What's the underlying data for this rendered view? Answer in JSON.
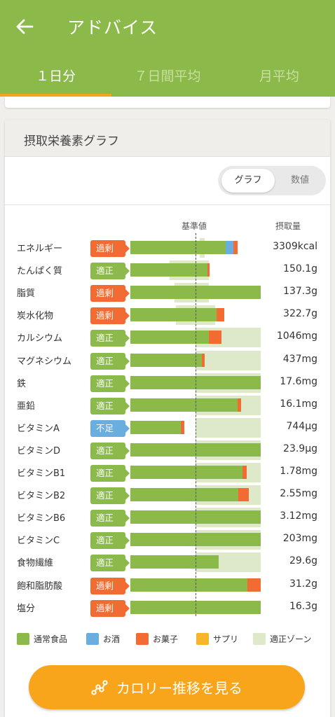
{
  "header": {
    "title": "アドバイス",
    "tabs": [
      {
        "label": "１日分",
        "active": true
      },
      {
        "label": "７日間平均",
        "active": false
      },
      {
        "label": "月平均",
        "active": false
      }
    ]
  },
  "card": {
    "title": "摂取栄養素グラフ",
    "toggle": {
      "graph_label": "グラフ",
      "value_label": "数値",
      "selected": "グラフ"
    },
    "columns": {
      "reference": "基準値",
      "intake": "摂取量"
    }
  },
  "colors": {
    "regular_food": "#8bb94a",
    "alcohol": "#6aaee0",
    "snacks": "#f26b33",
    "supplement": "#f7b52b",
    "proper_zone": "#dde9c8",
    "status_excess": "#f26b33",
    "status_proper": "#8bb94a",
    "status_short": "#6aaee0"
  },
  "chart_data": {
    "type": "bar",
    "stacked": true,
    "reference_label": "基準値",
    "intake_label": "摂取量",
    "categories": [
      "エネルギー",
      "たんぱく質",
      "脂質",
      "炭水化物",
      "カルシウム",
      "マグネシウム",
      "鉄",
      "亜鉛",
      "ビタミンA",
      "ビタミンD",
      "ビタミンB1",
      "ビタミンB2",
      "ビタミンB6",
      "ビタミンC",
      "食物繊維",
      "飽和脂肪酸",
      "塩分"
    ],
    "series_names": [
      "通常食品",
      "お酒",
      "お菓子",
      "サプリ"
    ],
    "rows": [
      {
        "name": "エネルギー",
        "status": "過剰",
        "status_type": "excess",
        "amount": "3309kcal",
        "regular": 73,
        "alcohol": 6,
        "snacks": 3,
        "supplement": 0,
        "zone": [
          53,
          57
        ]
      },
      {
        "name": "たんぱく質",
        "status": "適正",
        "status_type": "proper",
        "amount": "150.1g",
        "regular": 59,
        "alcohol": 0,
        "snacks": 1.5,
        "supplement": 0,
        "zone": [
          30,
          60
        ]
      },
      {
        "name": "脂質",
        "status": "過剰",
        "status_type": "excess",
        "amount": "137.3g",
        "regular": 100,
        "alcohol": 0,
        "snacks": 0,
        "supplement": 0,
        "zone": [
          34,
          60
        ]
      },
      {
        "name": "炭水化物",
        "status": "過剰",
        "status_type": "excess",
        "amount": "322.7g",
        "regular": 66,
        "alcohol": 0,
        "snacks": 6,
        "supplement": 0,
        "zone": [
          35,
          65
        ]
      },
      {
        "name": "カルシウム",
        "status": "適正",
        "status_type": "proper",
        "amount": "1046mg",
        "regular": 60,
        "alcohol": 0,
        "snacks": 10,
        "supplement": 0,
        "zone": [
          50,
          100
        ]
      },
      {
        "name": "マグネシウム",
        "status": "適正",
        "status_type": "proper",
        "amount": "437mg",
        "regular": 55,
        "alcohol": 0,
        "snacks": 2,
        "supplement": 0,
        "zone": [
          50,
          100
        ]
      },
      {
        "name": "鉄",
        "status": "適正",
        "status_type": "proper",
        "amount": "17.6mg",
        "regular": 100,
        "alcohol": 0,
        "snacks": 0,
        "supplement": 0,
        "zone": [
          50,
          100
        ]
      },
      {
        "name": "亜鉛",
        "status": "適正",
        "status_type": "proper",
        "amount": "16.1mg",
        "regular": 82,
        "alcohol": 0,
        "snacks": 3,
        "supplement": 0,
        "zone": [
          50,
          100
        ]
      },
      {
        "name": "ビタミンA",
        "status": "不足",
        "status_type": "short",
        "amount": "744μg",
        "regular": 38.5,
        "alcohol": 0,
        "snacks": 3,
        "supplement": 0,
        "zone": [
          50,
          100
        ]
      },
      {
        "name": "ビタミンD",
        "status": "適正",
        "status_type": "proper",
        "amount": "23.9μg",
        "regular": 100,
        "alcohol": 0,
        "snacks": 0,
        "supplement": 0,
        "zone": [
          50,
          100
        ]
      },
      {
        "name": "ビタミンB1",
        "status": "適正",
        "status_type": "proper",
        "amount": "1.78mg",
        "regular": 86,
        "alcohol": 0,
        "snacks": 3,
        "supplement": 0,
        "zone": [
          50,
          100
        ]
      },
      {
        "name": "ビタミンB2",
        "status": "適正",
        "status_type": "proper",
        "amount": "2.55mg",
        "regular": 83,
        "alcohol": 0,
        "snacks": 8,
        "supplement": 0,
        "zone": [
          50,
          100
        ]
      },
      {
        "name": "ビタミンB6",
        "status": "適正",
        "status_type": "proper",
        "amount": "3.12mg",
        "regular": 100,
        "alcohol": 0,
        "snacks": 0,
        "supplement": 0,
        "zone": [
          50,
          100
        ]
      },
      {
        "name": "ビタミンC",
        "status": "適正",
        "status_type": "proper",
        "amount": "203mg",
        "regular": 100,
        "alcohol": 0,
        "snacks": 0,
        "supplement": 0,
        "zone": [
          50,
          100
        ]
      },
      {
        "name": "食物繊維",
        "status": "適正",
        "status_type": "proper",
        "amount": "29.6g",
        "regular": 68,
        "alcohol": 0,
        "snacks": 0,
        "supplement": 0,
        "zone": [
          50,
          100
        ]
      },
      {
        "name": "飽和脂肪酸",
        "status": "過剰",
        "status_type": "excess",
        "amount": "31.2g",
        "regular": 90,
        "alcohol": 0,
        "snacks": 10,
        "supplement": 0,
        "zone": [
          0,
          0
        ]
      },
      {
        "name": "塩分",
        "status": "過剰",
        "status_type": "excess",
        "amount": "16.3g",
        "regular": 100,
        "alcohol": 0,
        "snacks": 0,
        "supplement": 0,
        "zone": [
          0,
          0
        ]
      }
    ],
    "reference_position": 50,
    "xlim": [
      0,
      100
    ]
  },
  "legend": [
    {
      "label": "通常食品",
      "color": "#8bb94a"
    },
    {
      "label": "お酒",
      "color": "#6aaee0"
    },
    {
      "label": "お菓子",
      "color": "#f26b33"
    },
    {
      "label": "サプリ",
      "color": "#f7b52b"
    },
    {
      "label": "適正ゾーン",
      "color": "#dde9c8"
    }
  ],
  "cta": {
    "label": "カロリー推移を見る",
    "icon": "trend-icon"
  }
}
